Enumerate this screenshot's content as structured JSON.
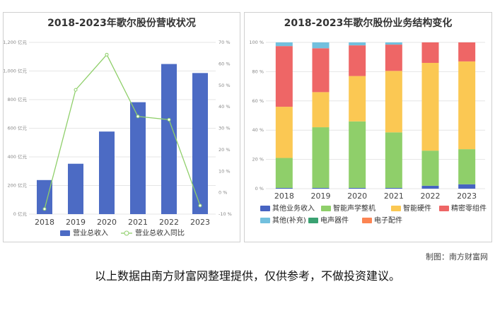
{
  "footer": {
    "source_note": "制图：南方财富网",
    "disclaimer": "以上数据由南方财富网整理提供，仅供参考，不做投资建议。"
  },
  "chart_data": [
    {
      "type": "bar",
      "title": "2018-2023年歌尔股份营收状况",
      "categories": [
        "2018",
        "2019",
        "2020",
        "2021",
        "2022",
        "2023"
      ],
      "series": [
        {
          "name": "营业总收入",
          "type": "bar",
          "axis": "left",
          "color": "#4c6bc4",
          "values": [
            238,
            352,
            577,
            782,
            1049,
            986
          ]
        },
        {
          "name": "营业总收入同比",
          "type": "line",
          "axis": "right",
          "color": "#8fcf6a",
          "values": [
            -7.6,
            47.9,
            64.3,
            35.5,
            34.0,
            -6.0
          ]
        }
      ],
      "y_left": {
        "min": 0,
        "max": 1200,
        "step": 200,
        "unit": "亿元",
        "tick_labels": [
          "0 亿元",
          "200 亿元",
          "400 亿元",
          "600 亿元",
          "800 亿元",
          "1,000 亿元",
          "1,200 亿元"
        ]
      },
      "y_right": {
        "min": -10,
        "max": 70,
        "step": 10,
        "tick_labels": [
          "-10 %",
          "0 %",
          "10 %",
          "20 %",
          "30 %",
          "40 %",
          "50 %",
          "60 %",
          "70 %"
        ]
      },
      "grid": true,
      "legend_position": "bottom"
    },
    {
      "type": "bar",
      "stacked": true,
      "title": "2018-2023年歌尔股份业务结构变化",
      "categories": [
        "2018",
        "2019",
        "2020",
        "2021",
        "2022",
        "2023"
      ],
      "series": [
        {
          "name": "其他业务收入",
          "color": "#4764c2",
          "values": [
            0.5,
            0.5,
            0.5,
            0.5,
            2.0,
            3.0
          ]
        },
        {
          "name": "智能声学整机",
          "color": "#8fcf6a",
          "values": [
            20.5,
            41.5,
            45.5,
            38.0,
            24.0,
            24.0
          ]
        },
        {
          "name": "智能硬件",
          "color": "#fbc853",
          "values": [
            35.0,
            24.0,
            31.0,
            42.0,
            60.0,
            60.0
          ]
        },
        {
          "name": "精密零组件",
          "color": "#ee6666",
          "values": [
            41.5,
            30.0,
            21.0,
            18.0,
            14.0,
            13.0
          ]
        },
        {
          "name": "其他(补充)",
          "color": "#72c0de",
          "values": [
            2.5,
            4.0,
            2.0,
            1.5,
            0,
            0
          ]
        },
        {
          "name": "电声器件",
          "color": "#3aa272",
          "values": [
            0,
            0,
            0,
            0,
            0,
            0
          ]
        },
        {
          "name": "电子配件",
          "color": "#fc8452",
          "values": [
            0,
            0,
            0,
            0,
            0,
            0
          ]
        }
      ],
      "y": {
        "min": 0,
        "max": 100,
        "step": 20,
        "tick_labels": [
          "0 %",
          "20 %",
          "40 %",
          "60 %",
          "80 %",
          "100 %"
        ]
      },
      "grid": true,
      "legend_position": "bottom"
    }
  ]
}
